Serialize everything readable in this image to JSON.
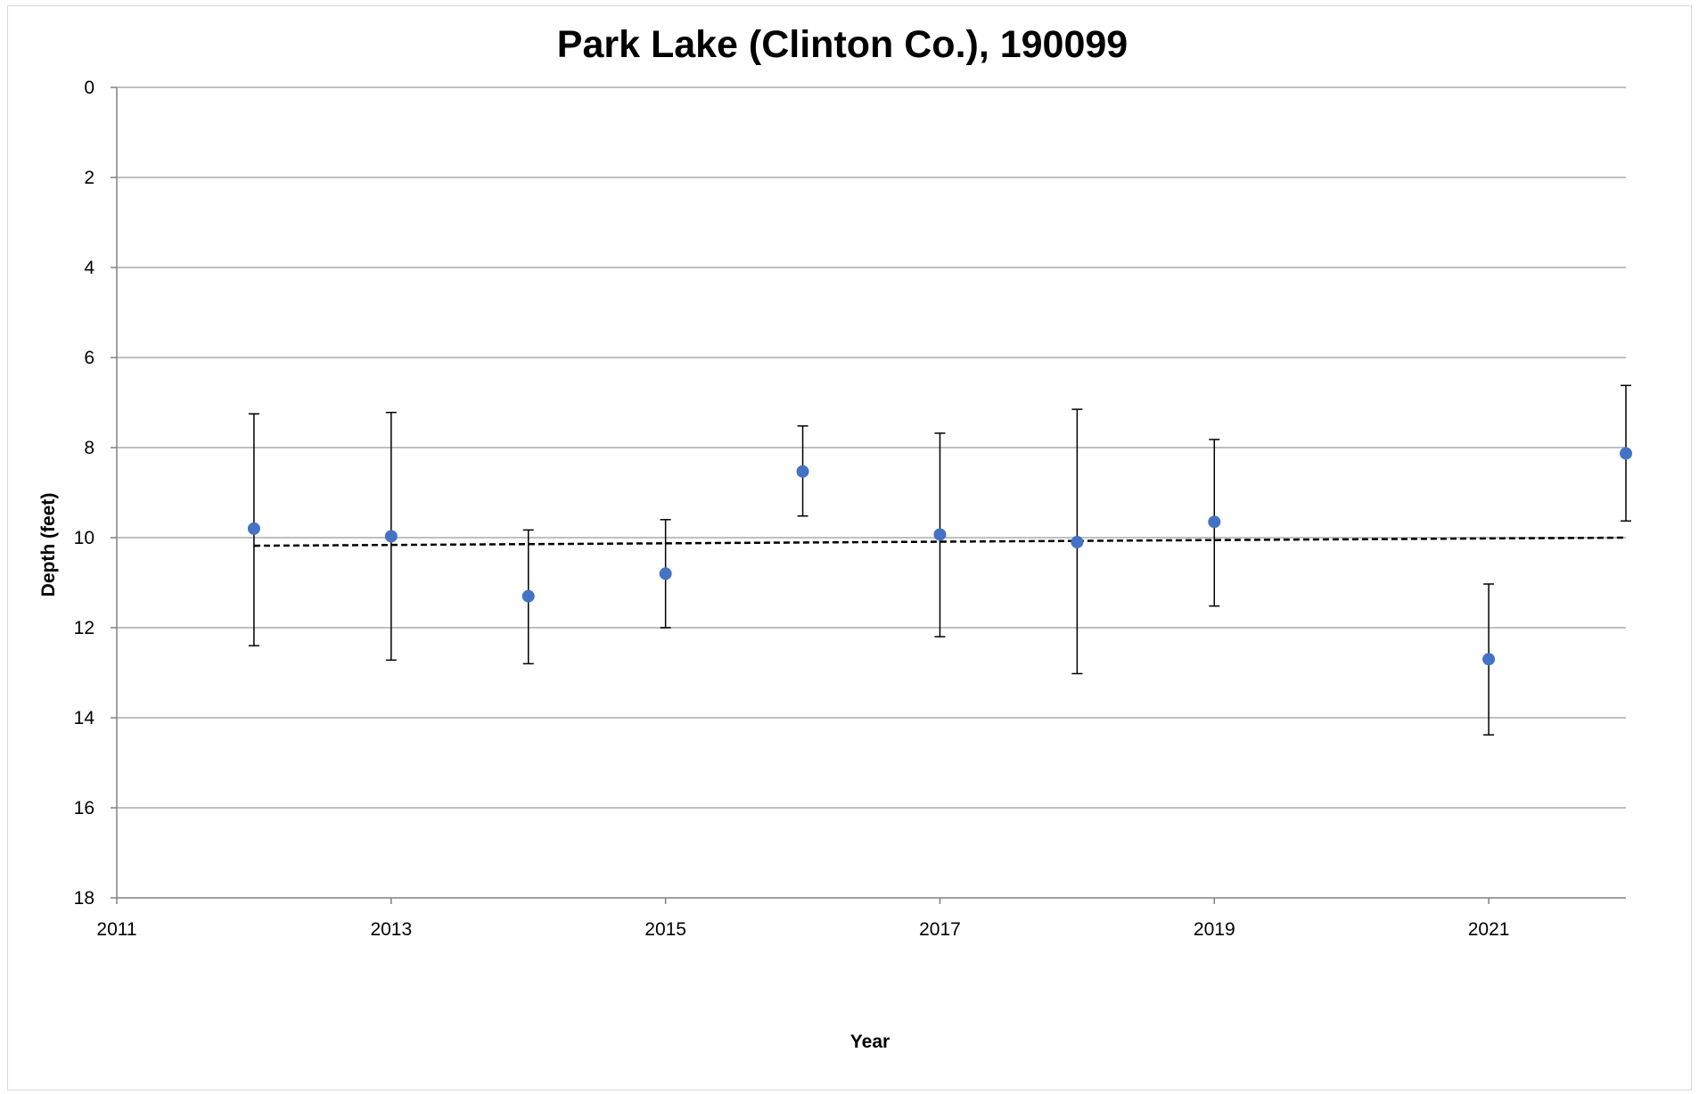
{
  "chart_data": {
    "type": "scatter",
    "title": "Park Lake (Clinton Co.), 190099",
    "xlabel": "Year",
    "ylabel": "Depth (feet)",
    "xlim": [
      2011,
      2022
    ],
    "ylim": [
      0,
      18
    ],
    "y_inverted": true,
    "x_ticks": [
      2011,
      2013,
      2015,
      2017,
      2019,
      2021
    ],
    "y_ticks": [
      0,
      2,
      4,
      6,
      8,
      10,
      12,
      14,
      16,
      18
    ],
    "grid": "horizontal",
    "legend": "none",
    "marker_color": "#4472c4",
    "series": [
      {
        "x": [
          2012,
          2013,
          2014,
          2015,
          2016,
          2017,
          2018,
          2019,
          2021,
          2022
        ],
        "y": [
          9.8,
          9.97,
          11.3,
          10.8,
          8.53,
          9.93,
          10.1,
          9.65,
          12.7,
          8.13
        ],
        "error_low": [
          7.25,
          7.22,
          9.83,
          9.6,
          7.52,
          7.68,
          7.15,
          7.82,
          11.03,
          6.62
        ],
        "error_high": [
          12.4,
          12.72,
          12.8,
          12.0,
          9.52,
          12.2,
          13.02,
          11.52,
          14.38,
          9.63
        ]
      }
    ],
    "trendline": {
      "style": "dashed",
      "color": "#000000",
      "x": [
        2012,
        2022
      ],
      "y": [
        10.18,
        10.0
      ]
    }
  }
}
